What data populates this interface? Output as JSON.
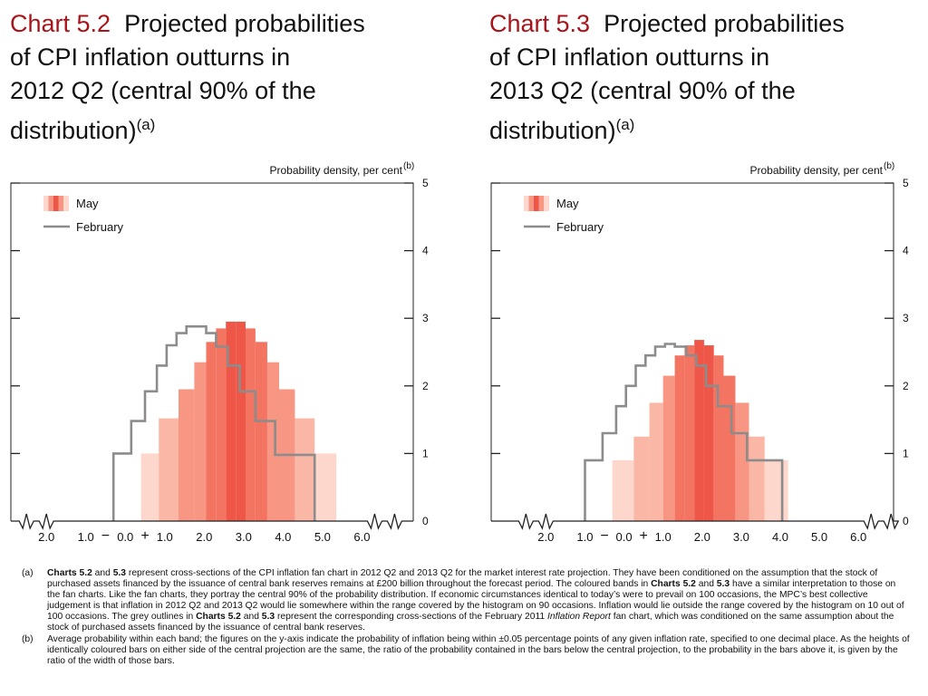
{
  "titles": [
    {
      "chart_no": "Chart 5.2",
      "line1": "Projected probabilities",
      "line2": "of CPI inflation outturns in",
      "line3": "2012 Q2 (central 90% of the",
      "line4": "distribution)",
      "note": "(a)"
    },
    {
      "chart_no": "Chart 5.3",
      "line1": "Projected probabilities",
      "line2": "of CPI inflation outturns in",
      "line3": "2013 Q2 (central 90% of the",
      "line4": "distribution)",
      "note": "(a)"
    }
  ],
  "colors": {
    "title_number": "#a8141a",
    "band_shades": [
      "#fdd6cc",
      "#fbb7a6",
      "#f89684",
      "#f47462",
      "#ee5748"
    ],
    "february_outline": "#8c8c8c",
    "axis": "#000000"
  },
  "chart_data": [
    {
      "type": "bar",
      "title": "Chart 5.2 Projected probabilities of CPI inflation outturns in 2012 Q2 (central 90% of the distribution)",
      "ylabel": "Probability density, per cent",
      "ylabel_note": "(b)",
      "ylim": [
        0,
        5
      ],
      "yticks": [
        0,
        1,
        2,
        3,
        4,
        5
      ],
      "xticks": [
        "2.0",
        "1.0",
        "0.0",
        "1.0",
        "2.0",
        "3.0",
        "4.0",
        "5.0",
        "6.0"
      ],
      "xtick_values": [
        -2,
        -1,
        0,
        1,
        2,
        3,
        4,
        5,
        6
      ],
      "sign_labels": [
        "−",
        "+"
      ],
      "xlim": [
        -2.9,
        7.3
      ],
      "legend": {
        "position": "top-left",
        "entries": [
          "May",
          "February"
        ]
      },
      "may_bars": [
        {
          "x0": 0.4,
          "x1": 0.85,
          "y": 1.0,
          "shade": 0
        },
        {
          "x0": 0.85,
          "x1": 1.35,
          "y": 1.52,
          "shade": 1
        },
        {
          "x0": 1.35,
          "x1": 1.75,
          "y": 1.95,
          "shade": 2
        },
        {
          "x0": 1.75,
          "x1": 2.05,
          "y": 2.35,
          "shade": 2
        },
        {
          "x0": 2.05,
          "x1": 2.3,
          "y": 2.65,
          "shade": 3
        },
        {
          "x0": 2.3,
          "x1": 2.55,
          "y": 2.85,
          "shade": 3
        },
        {
          "x0": 2.55,
          "x1": 2.8,
          "y": 2.95,
          "shade": 4
        },
        {
          "x0": 2.8,
          "x1": 3.05,
          "y": 2.95,
          "shade": 4
        },
        {
          "x0": 3.05,
          "x1": 3.3,
          "y": 2.85,
          "shade": 3
        },
        {
          "x0": 3.3,
          "x1": 3.6,
          "y": 2.65,
          "shade": 3
        },
        {
          "x0": 3.6,
          "x1": 3.9,
          "y": 2.35,
          "shade": 2
        },
        {
          "x0": 3.9,
          "x1": 4.3,
          "y": 1.95,
          "shade": 2
        },
        {
          "x0": 4.3,
          "x1": 4.8,
          "y": 1.52,
          "shade": 1
        },
        {
          "x0": 4.8,
          "x1": 5.35,
          "y": 1.0,
          "shade": 0
        }
      ],
      "february_outline": [
        [
          -0.3,
          0
        ],
        [
          -0.3,
          1.0
        ],
        [
          0.15,
          1.0
        ],
        [
          0.15,
          1.48
        ],
        [
          0.5,
          1.48
        ],
        [
          0.5,
          1.92
        ],
        [
          0.8,
          1.92
        ],
        [
          0.8,
          2.3
        ],
        [
          1.05,
          2.3
        ],
        [
          1.05,
          2.6
        ],
        [
          1.3,
          2.6
        ],
        [
          1.3,
          2.78
        ],
        [
          1.55,
          2.78
        ],
        [
          1.55,
          2.88
        ],
        [
          1.8,
          2.88
        ],
        [
          1.8,
          2.88
        ],
        [
          2.05,
          2.88
        ],
        [
          2.05,
          2.78
        ],
        [
          2.3,
          2.78
        ],
        [
          2.3,
          2.58
        ],
        [
          2.6,
          2.58
        ],
        [
          2.6,
          2.3
        ],
        [
          2.9,
          2.3
        ],
        [
          2.9,
          1.92
        ],
        [
          3.3,
          1.92
        ],
        [
          3.3,
          1.48
        ],
        [
          3.8,
          1.48
        ],
        [
          3.8,
          0.98
        ],
        [
          4.8,
          0.98
        ],
        [
          4.8,
          0
        ]
      ]
    },
    {
      "type": "bar",
      "title": "Chart 5.3 Projected probabilities of CPI inflation outturns in 2013 Q2 (central 90% of the distribution)",
      "ylabel": "Probability density, per cent",
      "ylabel_note": "(b)",
      "ylim": [
        0,
        5
      ],
      "yticks": [
        0,
        1,
        2,
        3,
        4,
        5
      ],
      "xticks": [
        "2.0",
        "1.0",
        "0.0",
        "1.0",
        "2.0",
        "3.0",
        "4.0",
        "5.0",
        "6.0"
      ],
      "xtick_values": [
        -2,
        -1,
        0,
        1,
        2,
        3,
        4,
        5,
        6
      ],
      "sign_labels": [
        "−",
        "+"
      ],
      "xlim": [
        -3.4,
        6.9
      ],
      "legend": {
        "position": "top-left",
        "entries": [
          "May",
          "February"
        ]
      },
      "may_bars": [
        {
          "x0": -0.3,
          "x1": 0.25,
          "y": 0.9,
          "shade": 0
        },
        {
          "x0": 0.25,
          "x1": 0.65,
          "y": 1.25,
          "shade": 1
        },
        {
          "x0": 0.65,
          "x1": 1.0,
          "y": 1.75,
          "shade": 1
        },
        {
          "x0": 1.0,
          "x1": 1.3,
          "y": 2.15,
          "shade": 2
        },
        {
          "x0": 1.3,
          "x1": 1.55,
          "y": 2.45,
          "shade": 3
        },
        {
          "x0": 1.55,
          "x1": 1.8,
          "y": 2.6,
          "shade": 3
        },
        {
          "x0": 1.8,
          "x1": 2.05,
          "y": 2.68,
          "shade": 4
        },
        {
          "x0": 2.05,
          "x1": 2.3,
          "y": 2.6,
          "shade": 4
        },
        {
          "x0": 2.3,
          "x1": 2.55,
          "y": 2.45,
          "shade": 3
        },
        {
          "x0": 2.55,
          "x1": 2.85,
          "y": 2.15,
          "shade": 3
        },
        {
          "x0": 2.85,
          "x1": 3.2,
          "y": 1.75,
          "shade": 2
        },
        {
          "x0": 3.2,
          "x1": 3.6,
          "y": 1.25,
          "shade": 1
        },
        {
          "x0": 3.6,
          "x1": 4.2,
          "y": 0.9,
          "shade": 0
        }
      ],
      "february_outline": [
        [
          -1.0,
          0
        ],
        [
          -1.0,
          0.9
        ],
        [
          -0.55,
          0.9
        ],
        [
          -0.55,
          1.3
        ],
        [
          -0.2,
          1.3
        ],
        [
          -0.2,
          1.7
        ],
        [
          0.05,
          1.7
        ],
        [
          0.05,
          2.0
        ],
        [
          0.3,
          2.0
        ],
        [
          0.3,
          2.3
        ],
        [
          0.55,
          2.3
        ],
        [
          0.55,
          2.45
        ],
        [
          0.8,
          2.45
        ],
        [
          0.8,
          2.58
        ],
        [
          1.05,
          2.58
        ],
        [
          1.05,
          2.62
        ],
        [
          1.3,
          2.62
        ],
        [
          1.3,
          2.58
        ],
        [
          1.6,
          2.58
        ],
        [
          1.6,
          2.45
        ],
        [
          1.85,
          2.45
        ],
        [
          1.85,
          2.3
        ],
        [
          2.1,
          2.3
        ],
        [
          2.1,
          2.0
        ],
        [
          2.4,
          2.0
        ],
        [
          2.4,
          1.7
        ],
        [
          2.75,
          1.7
        ],
        [
          2.75,
          1.3
        ],
        [
          3.15,
          1.3
        ],
        [
          3.15,
          0.9
        ],
        [
          4.05,
          0.9
        ],
        [
          4.05,
          0
        ]
      ]
    }
  ],
  "footnotes": [
    {
      "label": "(a)",
      "parts": [
        {
          "b": true,
          "t": "Charts 5.2"
        },
        {
          "t": " and "
        },
        {
          "b": true,
          "t": "5.3"
        },
        {
          "t": " represent cross-sections of the CPI inflation fan chart in 2012 Q2 and 2013 Q2 for the market interest rate projection.  They have been conditioned on the assumption that the stock of purchased assets financed by the issuance of central bank reserves remains at £200 billion throughout the forecast period.  The coloured bands in "
        },
        {
          "b": true,
          "t": "Charts 5.2"
        },
        {
          "t": " and "
        },
        {
          "b": true,
          "t": "5.3"
        },
        {
          "t": " have a similar interpretation to those on the fan charts.  Like the fan charts, they portray the central 90% of the probability distribution.  If economic circumstances identical to today’s were to prevail on 100 occasions, the MPC’s best collective judgement is that inflation in 2012 Q2 and 2013 Q2 would lie somewhere within the range covered by the histogram on 90 occasions.  Inflation would lie outside the range covered by the histogram on 10 out of 100 occasions.  The grey outlines in "
        },
        {
          "b": true,
          "t": "Charts 5.2"
        },
        {
          "t": " and "
        },
        {
          "b": true,
          "t": "5.3"
        },
        {
          "t": " represent the corresponding cross-sections of the February 2011 "
        },
        {
          "i": true,
          "t": "Inflation Report"
        },
        {
          "t": " fan chart, which was conditioned on the same assumption about the stock of purchased assets financed by the issuance of central bank reserves."
        }
      ]
    },
    {
      "label": "(b)",
      "parts": [
        {
          "t": "Average probability within each band;  the figures on the y-axis indicate the probability of inflation being within ±0.05 percentage points of any given inflation rate, specified to one decimal place.  As the heights of identically coloured bars on either side of the central projection are the same, the ratio of the probability contained in the bars below the central projection, to the probability in the bars above it, is given by the ratio of the width of those bars."
        }
      ]
    }
  ]
}
